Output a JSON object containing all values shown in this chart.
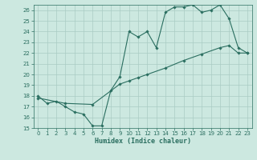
{
  "xlabel": "Humidex (Indice chaleur)",
  "bg_color": "#cce8e0",
  "grid_color": "#aaccc4",
  "line_color": "#2a6e60",
  "spine_color": "#2a6e60",
  "xlim": [
    -0.5,
    23.5
  ],
  "ylim": [
    15,
    26.5
  ],
  "yticks": [
    15,
    16,
    17,
    18,
    19,
    20,
    21,
    22,
    23,
    24,
    25,
    26
  ],
  "xticks": [
    0,
    1,
    2,
    3,
    4,
    5,
    6,
    7,
    8,
    9,
    10,
    11,
    12,
    13,
    14,
    15,
    16,
    17,
    18,
    19,
    20,
    21,
    22,
    23
  ],
  "line1_x": [
    0,
    1,
    2,
    3,
    4,
    5,
    6,
    7,
    8,
    9,
    10,
    11,
    12,
    13,
    14,
    15,
    16,
    17,
    18,
    19,
    20,
    21,
    22,
    23
  ],
  "line1_y": [
    18,
    17.3,
    17.5,
    17.0,
    16.5,
    16.3,
    15.2,
    15.2,
    18.5,
    19.8,
    24.0,
    23.5,
    24.0,
    22.5,
    25.8,
    26.3,
    26.3,
    26.5,
    25.8,
    26.0,
    26.5,
    25.2,
    22.5,
    22.0
  ],
  "line2_x": [
    0,
    3,
    6,
    9,
    10,
    11,
    12,
    14,
    16,
    18,
    20,
    21,
    22,
    23
  ],
  "line2_y": [
    17.8,
    17.3,
    17.2,
    19.1,
    19.4,
    19.7,
    20.0,
    20.6,
    21.3,
    21.9,
    22.5,
    22.7,
    22.0,
    22.0
  ],
  "tick_fontsize": 5,
  "xlabel_fontsize": 6
}
